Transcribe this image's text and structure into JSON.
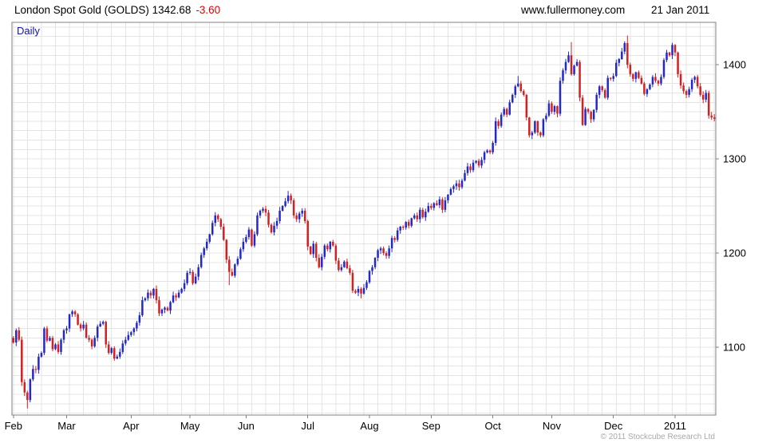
{
  "header": {
    "title": "London Spot Gold (GOLDS) 1342.68",
    "change": "-3.60",
    "site": "www.fullermoney.com",
    "date": "21 Jan 2011"
  },
  "chart_label": "Daily",
  "footer": {
    "copyright": "© 2011 Stockcube Research Ltd"
  },
  "colors": {
    "up": "#2329c8",
    "down": "#d42020",
    "grid": "#e4e4e4",
    "frame": "#808080",
    "axis_text": "#000000",
    "change_text": "#dd0000",
    "timeframe_text": "#1414a0"
  },
  "chart_data": {
    "type": "candlestick",
    "title": "London Spot Gold (GOLDS)",
    "subtitle": "Daily",
    "last_price": 1342.68,
    "change": -3.6,
    "xlabel": "",
    "ylabel": "",
    "grid": true,
    "legend": "none",
    "y_ticks": [
      1100,
      1200,
      1300,
      1400
    ],
    "y_range": [
      1028,
      1445
    ],
    "y_gridline_step": 10,
    "x_gridline_every_bars": 5,
    "x_labels": [
      {
        "label": "Feb",
        "index": 0
      },
      {
        "label": "Mar",
        "index": 19
      },
      {
        "label": "Apr",
        "index": 42
      },
      {
        "label": "May",
        "index": 63
      },
      {
        "label": "Jun",
        "index": 83
      },
      {
        "label": "Jul",
        "index": 105
      },
      {
        "label": "Aug",
        "index": 127
      },
      {
        "label": "Sep",
        "index": 149
      },
      {
        "label": "Oct",
        "index": 171
      },
      {
        "label": "Nov",
        "index": 192
      },
      {
        "label": "Dec",
        "index": 214
      },
      {
        "label": "2011",
        "index": 236
      }
    ],
    "first_open": 1110,
    "closes": [
      1105,
      1118,
      1108,
      1063,
      1052,
      1044,
      1066,
      1077,
      1076,
      1090,
      1094,
      1120,
      1107,
      1110,
      1098,
      1103,
      1095,
      1108,
      1118,
      1120,
      1135,
      1138,
      1135,
      1124,
      1120,
      1124,
      1110,
      1108,
      1101,
      1110,
      1122,
      1125,
      1127,
      1103,
      1094,
      1099,
      1088,
      1090,
      1095,
      1104,
      1108,
      1113,
      1116,
      1120,
      1126,
      1134,
      1150,
      1152,
      1158,
      1155,
      1162,
      1150,
      1136,
      1140,
      1142,
      1139,
      1148,
      1155,
      1153,
      1158,
      1162,
      1168,
      1179,
      1180,
      1168,
      1175,
      1185,
      1198,
      1205,
      1212,
      1220,
      1232,
      1240,
      1236,
      1228,
      1214,
      1193,
      1180,
      1176,
      1188,
      1194,
      1204,
      1212,
      1217,
      1225,
      1208,
      1220,
      1240,
      1245,
      1247,
      1243,
      1230,
      1222,
      1229,
      1234,
      1245,
      1250,
      1255,
      1261,
      1256,
      1240,
      1236,
      1242,
      1245,
      1234,
      1207,
      1199,
      1210,
      1195,
      1185,
      1196,
      1208,
      1204,
      1212,
      1208,
      1192,
      1182,
      1185,
      1191,
      1184,
      1179,
      1160,
      1158,
      1162,
      1157,
      1163,
      1169,
      1181,
      1185,
      1195,
      1203,
      1205,
      1200,
      1197,
      1205,
      1216,
      1214,
      1224,
      1228,
      1227,
      1233,
      1229,
      1237,
      1240,
      1236,
      1246,
      1238,
      1244,
      1250,
      1248,
      1253,
      1251,
      1257,
      1246,
      1256,
      1262,
      1268,
      1271,
      1274,
      1270,
      1277,
      1285,
      1292,
      1288,
      1296,
      1298,
      1293,
      1299,
      1307,
      1309,
      1307,
      1317,
      1340,
      1335,
      1347,
      1353,
      1347,
      1360,
      1368,
      1377,
      1380,
      1372,
      1368,
      1344,
      1325,
      1328,
      1340,
      1328,
      1325,
      1342,
      1346,
      1359,
      1350,
      1356,
      1348,
      1383,
      1394,
      1403,
      1410,
      1390,
      1399,
      1403,
      1365,
      1336,
      1353,
      1350,
      1342,
      1352,
      1368,
      1377,
      1373,
      1365,
      1386,
      1385,
      1388,
      1402,
      1406,
      1414,
      1423,
      1400,
      1390,
      1385,
      1392,
      1386,
      1380,
      1369,
      1374,
      1379,
      1387,
      1383,
      1380,
      1387,
      1405,
      1413,
      1410,
      1421,
      1413,
      1390,
      1378,
      1372,
      1368,
      1374,
      1384,
      1387,
      1377,
      1368,
      1363,
      1370,
      1346,
      1344,
      1342.68
    ],
    "extreme_highs": {
      "98": 1266,
      "180": 1388,
      "199": 1424,
      "219": 1431
    },
    "extreme_lows": {
      "5": 1035,
      "77": 1166,
      "124": 1152
    }
  }
}
